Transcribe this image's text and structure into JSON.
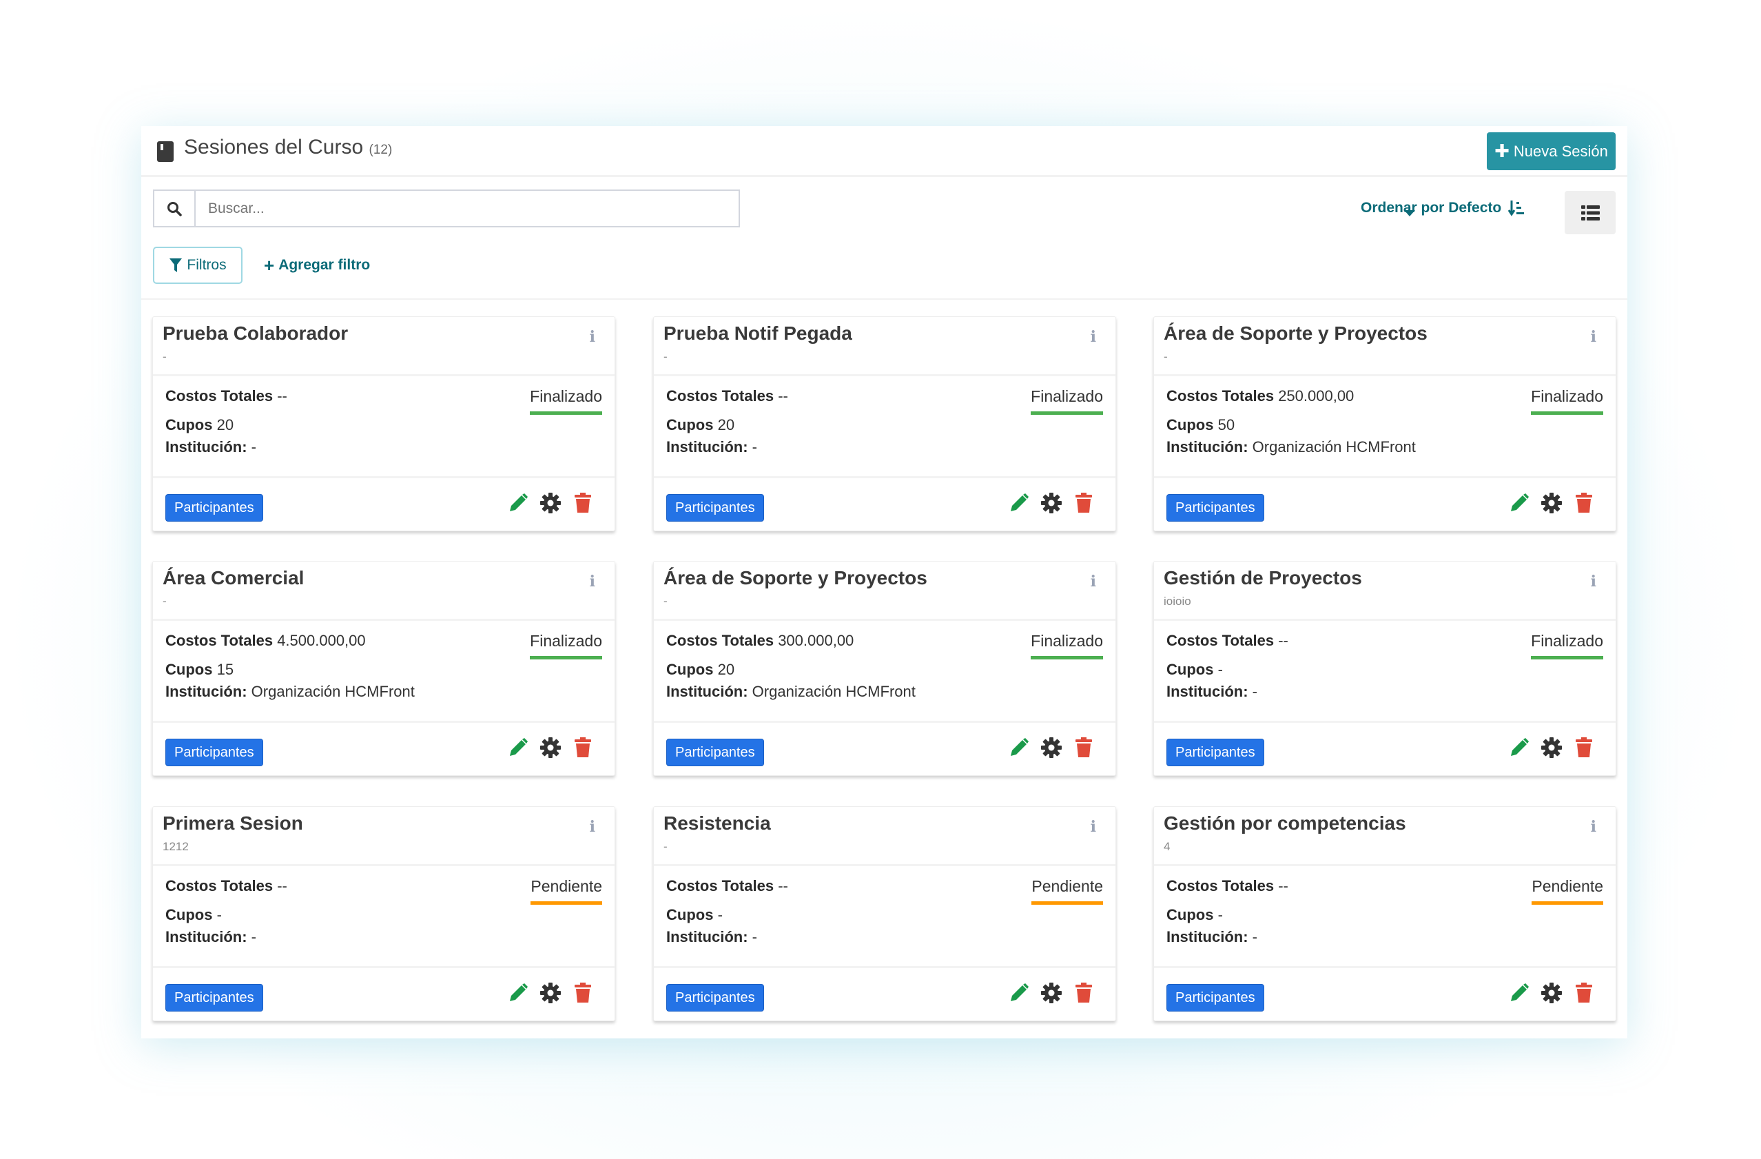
{
  "header": {
    "title": "Sesiones del Curso",
    "count": "(12)",
    "new_button": "Nueva Sesión"
  },
  "search": {
    "placeholder": "Buscar...",
    "value": ""
  },
  "filters": {
    "filters_label": "Filtros",
    "add_filter_label": "Agregar filtro"
  },
  "sort": {
    "label": "Ordenar por Defecto"
  },
  "labels": {
    "costs": "Costos Totales",
    "cupos": "Cupos",
    "institution": "Institución:",
    "participants": "Participantes"
  },
  "colors": {
    "accent": "#2794a3",
    "finalizado": "#4caf50",
    "pendiente": "#ff9800",
    "participants": "#2473e6",
    "edit": "#1a9a4a",
    "delete": "#e04b3a"
  },
  "sessions": [
    {
      "title": "Prueba Colaborador",
      "subtitle": "-",
      "costs": "--",
      "cupos": "20",
      "institution": "-",
      "status": "Finalizado",
      "status_kind": "done"
    },
    {
      "title": "Prueba Notif Pegada",
      "subtitle": "-",
      "costs": "--",
      "cupos": "20",
      "institution": "-",
      "status": "Finalizado",
      "status_kind": "done"
    },
    {
      "title": "Área de Soporte y Proyectos",
      "subtitle": "-",
      "costs": "250.000,00",
      "cupos": "50",
      "institution": "Organización HCMFront",
      "status": "Finalizado",
      "status_kind": "done"
    },
    {
      "title": "Área Comercial",
      "subtitle": "-",
      "costs": "4.500.000,00",
      "cupos": "15",
      "institution": "Organización HCMFront",
      "status": "Finalizado",
      "status_kind": "done"
    },
    {
      "title": "Área de Soporte y Proyectos",
      "subtitle": "-",
      "costs": "300.000,00",
      "cupos": "20",
      "institution": "Organización HCMFront",
      "status": "Finalizado",
      "status_kind": "done"
    },
    {
      "title": "Gestión de Proyectos",
      "subtitle": "ioioio",
      "costs": "--",
      "cupos": "-",
      "institution": "-",
      "status": "Finalizado",
      "status_kind": "done"
    },
    {
      "title": "Primera Sesion",
      "subtitle": "1212",
      "costs": "--",
      "cupos": "-",
      "institution": "-",
      "status": "Pendiente",
      "status_kind": "pending"
    },
    {
      "title": "Resistencia",
      "subtitle": "-",
      "costs": "--",
      "cupos": "-",
      "institution": "-",
      "status": "Pendiente",
      "status_kind": "pending"
    },
    {
      "title": "Gestión por competencias",
      "subtitle": "4",
      "costs": "--",
      "cupos": "-",
      "institution": "-",
      "status": "Pendiente",
      "status_kind": "pending"
    }
  ]
}
